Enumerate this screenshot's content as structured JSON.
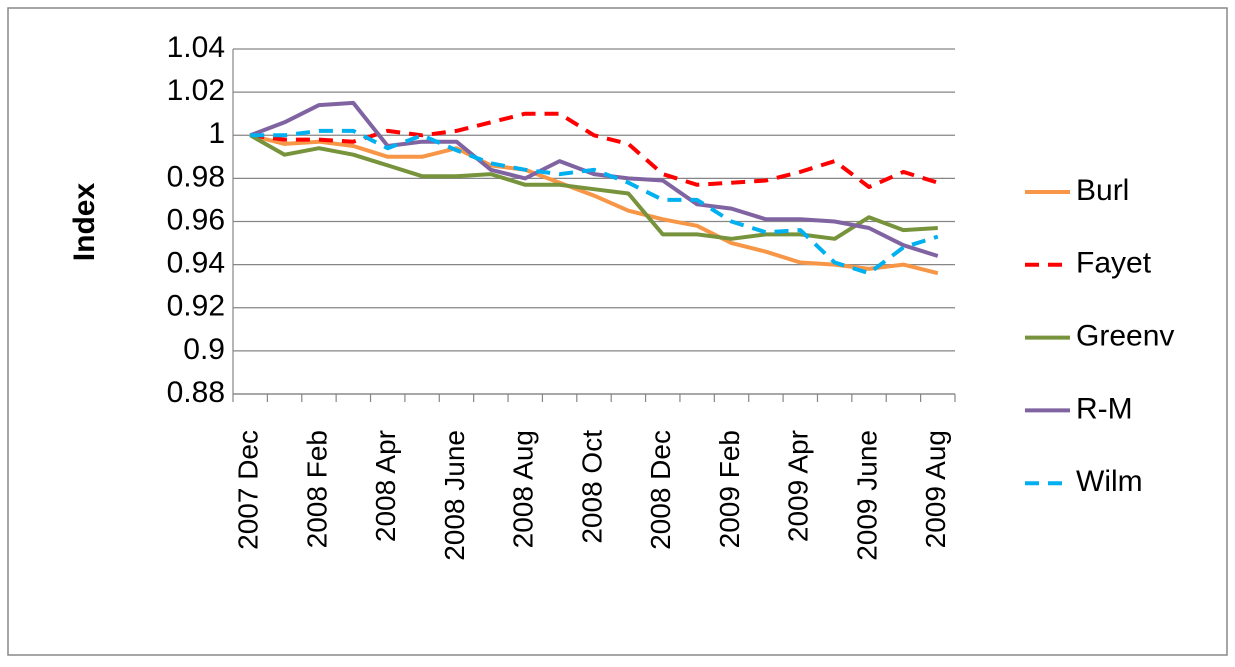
{
  "chart_data": {
    "type": "line",
    "y_label": "Index",
    "categories": [
      "2007 Dec",
      null,
      "2008 Feb",
      null,
      "2008 Apr",
      null,
      "2008 June",
      null,
      "2008 Aug",
      null,
      "2008 Oct",
      null,
      "2008 Dec",
      null,
      "2009 Feb",
      null,
      "2009 Apr",
      null,
      "2009 June",
      null,
      "2009 Aug"
    ],
    "series": [
      {
        "name": "Burl",
        "color": "#f79646",
        "dashed": false,
        "values": [
          1,
          0.996,
          0.997,
          0.995,
          0.99,
          0.99,
          0.994,
          0.986,
          0.984,
          0.978,
          0.972,
          0.965,
          0.961,
          0.958,
          0.95,
          0.946,
          0.941,
          0.94,
          0.938,
          0.94,
          0.936
        ]
      },
      {
        "name": "Fayet",
        "color": "#ff0000",
        "dashed": true,
        "values": [
          1,
          0.998,
          0.998,
          0.997,
          1.002,
          1.0,
          1.002,
          1.006,
          1.01,
          1.01,
          1.0,
          0.996,
          0.982,
          0.977,
          0.978,
          0.979,
          0.983,
          0.988,
          0.976,
          0.983,
          0.978
        ]
      },
      {
        "name": "Greenv",
        "color": "#77933c",
        "dashed": false,
        "values": [
          1,
          0.991,
          0.994,
          0.991,
          0.986,
          0.981,
          0.981,
          0.982,
          0.977,
          0.977,
          0.975,
          0.973,
          0.954,
          0.954,
          0.952,
          0.954,
          0.954,
          0.952,
          0.962,
          0.956,
          0.957
        ]
      },
      {
        "name": "R-M",
        "color": "#8064a2",
        "dashed": false,
        "values": [
          1,
          1.006,
          1.014,
          1.015,
          0.995,
          0.997,
          0.997,
          0.984,
          0.98,
          0.988,
          0.982,
          0.98,
          0.979,
          0.968,
          0.966,
          0.961,
          0.961,
          0.96,
          0.957,
          0.949,
          0.944
        ]
      },
      {
        "name": "Wilm",
        "color": "#00b0f0",
        "dashed": true,
        "values": [
          1,
          1.0,
          1.002,
          1.002,
          0.994,
          1.0,
          0.993,
          0.987,
          0.984,
          0.982,
          0.984,
          0.978,
          0.97,
          0.97,
          0.96,
          0.955,
          0.956,
          0.941,
          0.936,
          0.948,
          0.953
        ]
      }
    ],
    "ylim": [
      0.88,
      1.04
    ],
    "yticks": [
      0.88,
      0.9,
      0.92,
      0.94,
      0.96,
      0.98,
      1,
      1.02,
      1.04
    ],
    "grid": true,
    "legend": "right"
  }
}
